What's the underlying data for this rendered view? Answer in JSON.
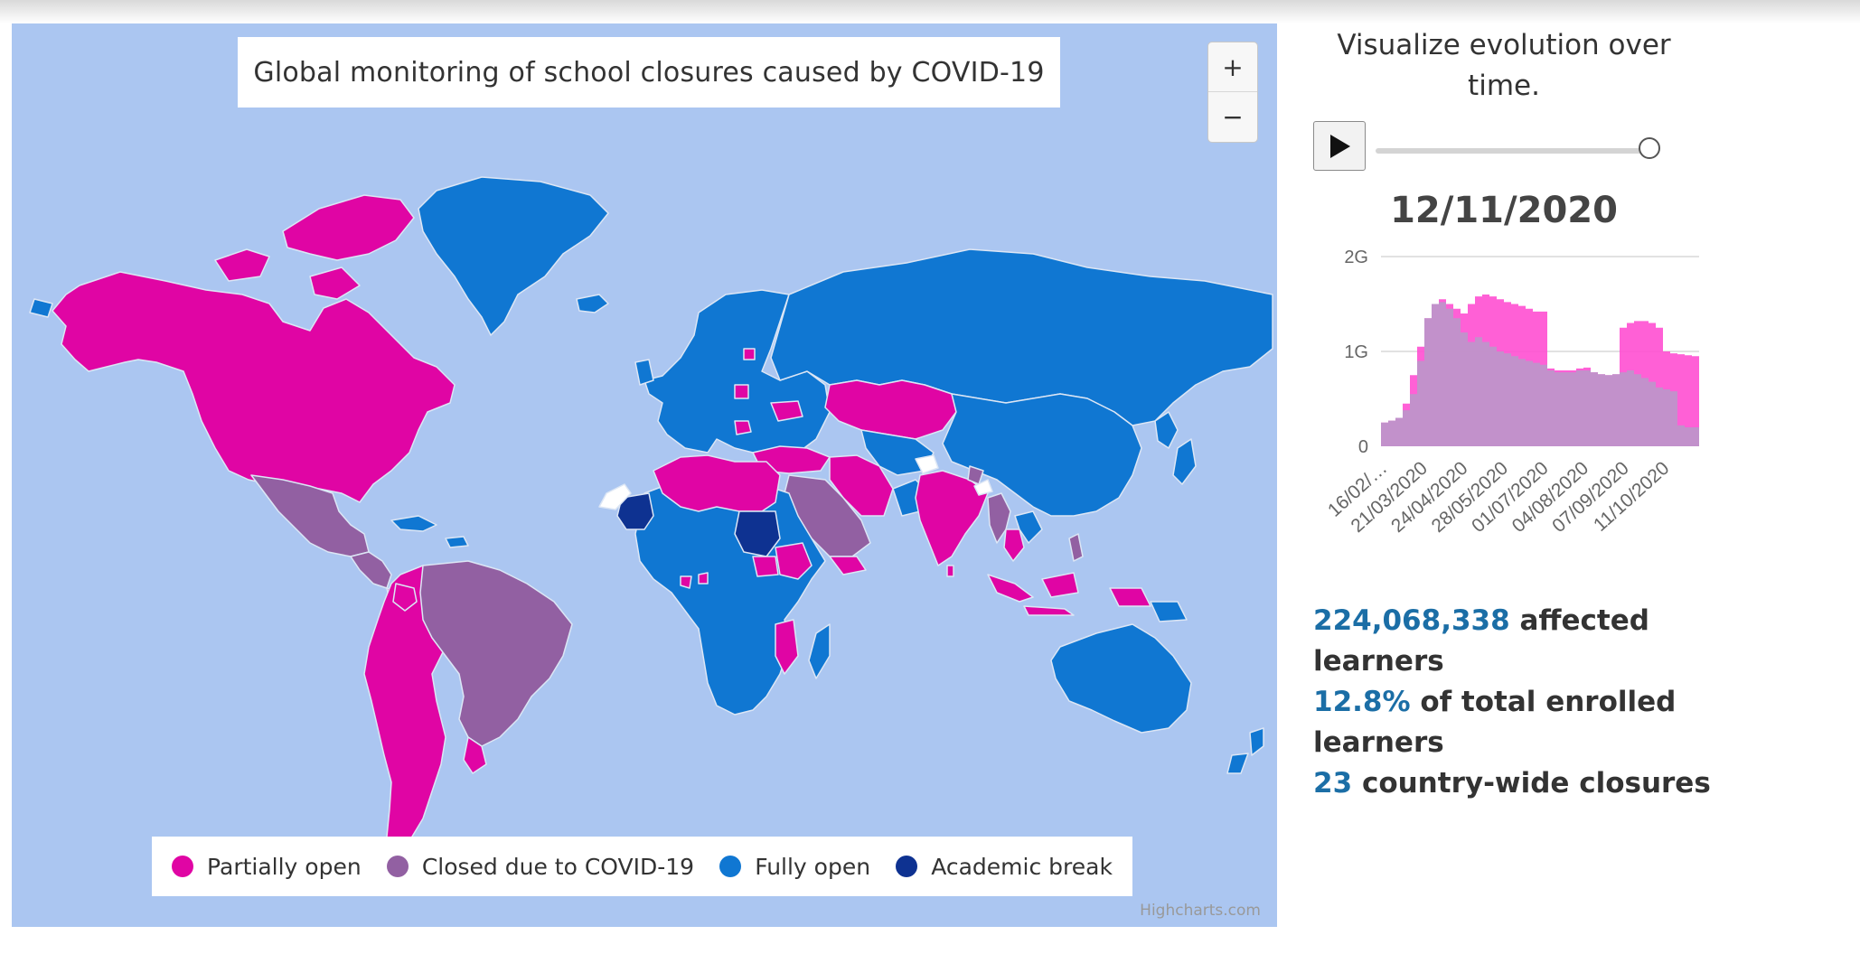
{
  "map": {
    "title": "Global monitoring of school closures caused by COVID-19",
    "zoom_in_label": "+",
    "zoom_out_label": "−",
    "credits": "Highcharts.com",
    "ocean_color": "#abc6f1",
    "legend": [
      {
        "label": "Partially open",
        "color": "#e005a4"
      },
      {
        "label": "Closed due to COVID-19",
        "color": "#9260a2"
      },
      {
        "label": "Fully open",
        "color": "#1077d2"
      },
      {
        "label": "Academic break",
        "color": "#0e3291"
      }
    ]
  },
  "side": {
    "heading": "Visualize evolution over time.",
    "play_icon": "play-icon",
    "slider_value": 1.0,
    "current_date": "12/11/2020",
    "stats": {
      "affected_count": "224,068,338",
      "affected_label": "affected learners",
      "percent": "12.8%",
      "percent_label": "of total enrolled learners",
      "closures_count": "23",
      "closures_label": "country-wide closures"
    }
  },
  "chart_data": {
    "type": "area",
    "y_tick_labels": [
      "0",
      "1G",
      "2G"
    ],
    "ylim": [
      0,
      2
    ],
    "x_tick_labels": [
      "16/02/…",
      "21/03/2020",
      "24/04/2020",
      "28/05/2020",
      "01/07/2020",
      "04/08/2020",
      "07/09/2020",
      "11/10/2020"
    ],
    "series": [
      {
        "color": "#ff4fd2",
        "values": [
          0.25,
          0.27,
          0.3,
          0.45,
          0.75,
          1.05,
          1.35,
          1.5,
          1.55,
          1.5,
          1.45,
          1.4,
          1.5,
          1.58,
          1.6,
          1.58,
          1.55,
          1.52,
          1.5,
          1.48,
          1.45,
          1.42,
          1.42,
          0.82,
          0.8,
          0.8,
          0.8,
          0.82,
          0.83,
          0.78,
          0.76,
          0.75,
          0.76,
          1.25,
          1.3,
          1.32,
          1.32,
          1.3,
          1.25,
          1.0,
          0.98,
          0.97,
          0.96,
          0.95
        ]
      },
      {
        "color": "#b79ac9",
        "values": [
          0.25,
          0.27,
          0.3,
          0.38,
          0.55,
          0.9,
          1.35,
          1.5,
          1.52,
          1.45,
          1.35,
          1.2,
          1.1,
          1.15,
          1.1,
          1.05,
          1.0,
          0.98,
          0.95,
          0.92,
          0.9,
          0.88,
          0.86,
          0.8,
          0.78,
          0.78,
          0.78,
          0.8,
          0.8,
          0.78,
          0.76,
          0.75,
          0.76,
          0.78,
          0.8,
          0.76,
          0.72,
          0.68,
          0.62,
          0.6,
          0.58,
          0.22,
          0.2,
          0.2
        ]
      }
    ]
  }
}
